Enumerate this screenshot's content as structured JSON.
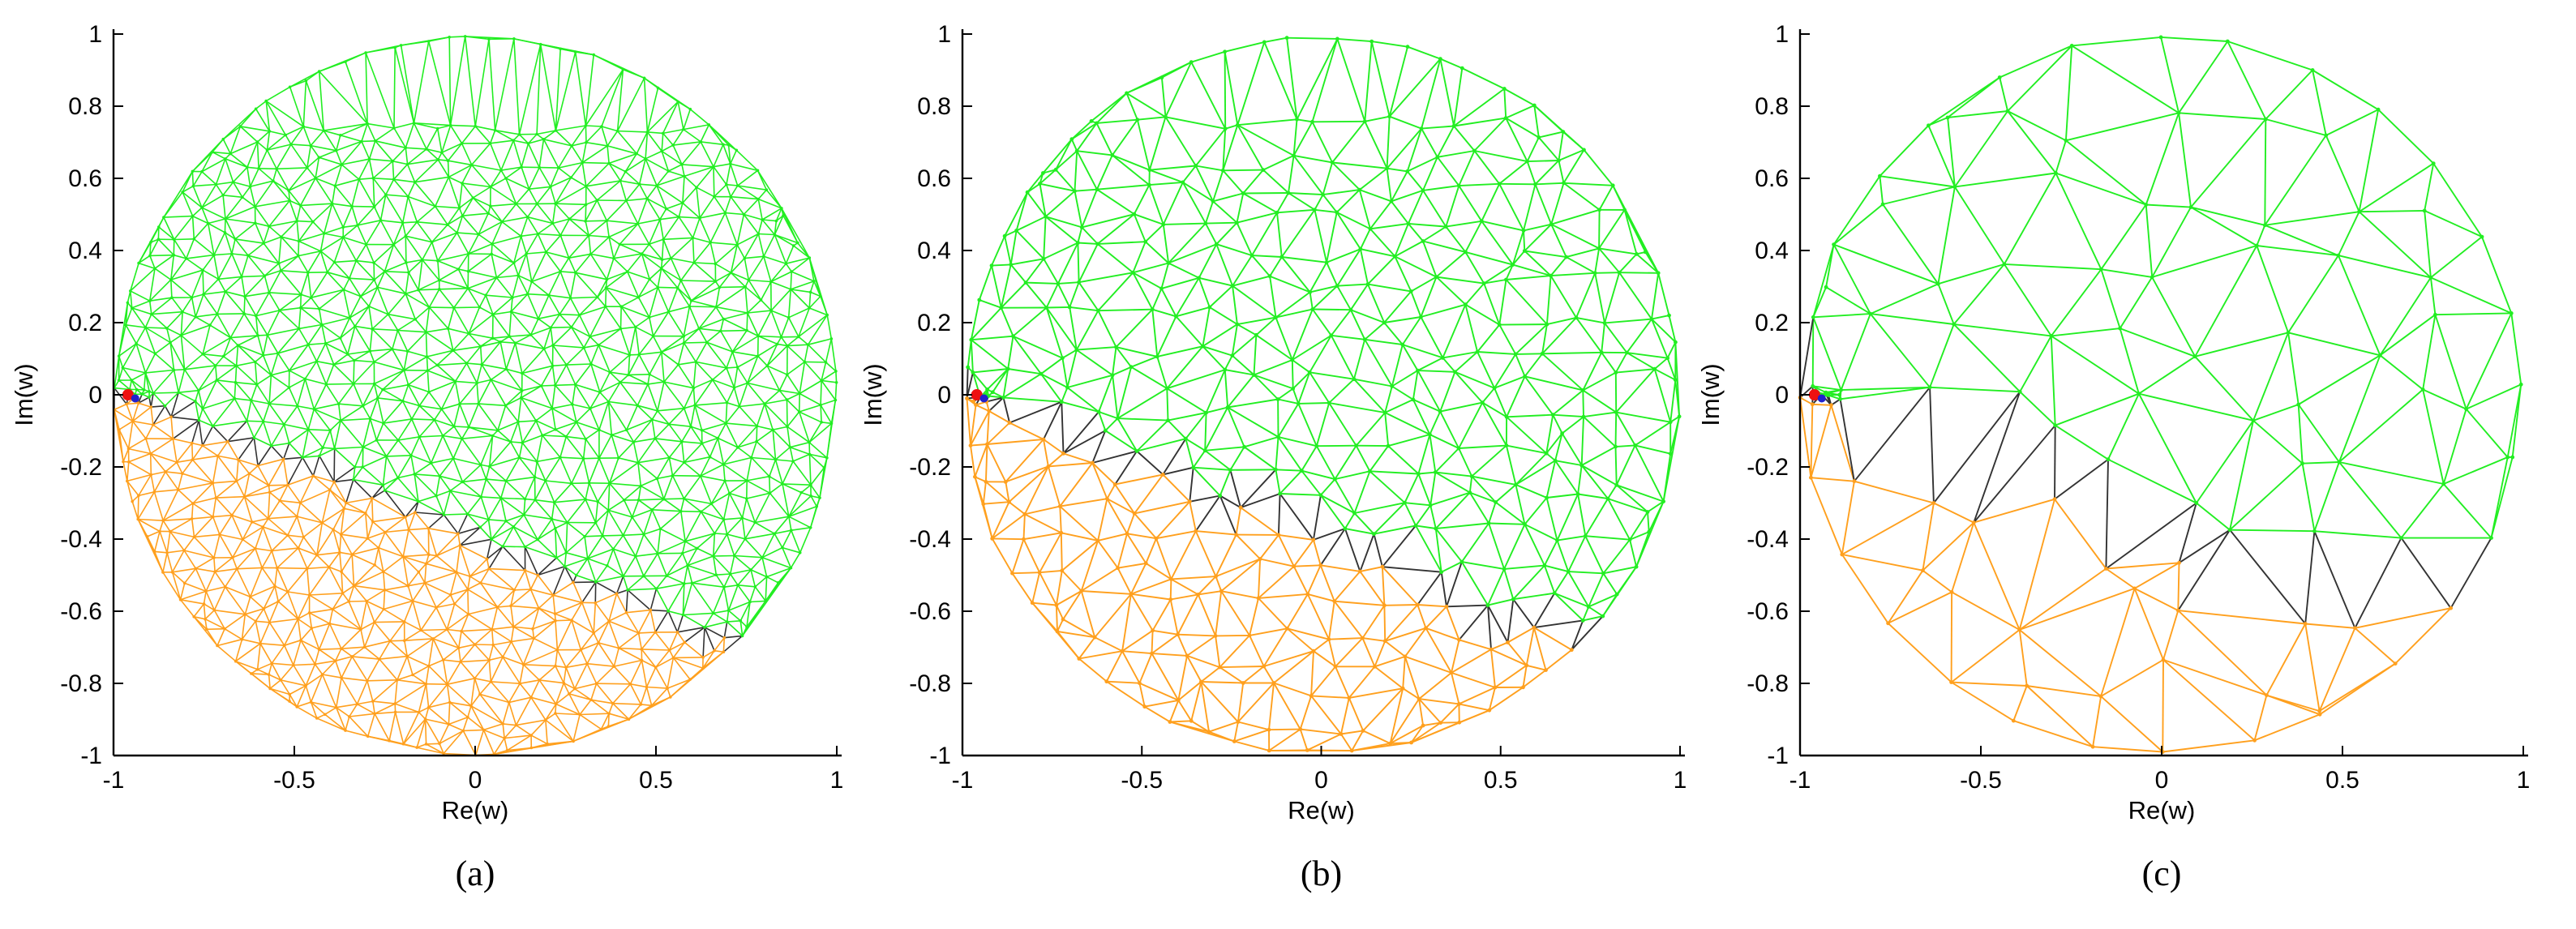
{
  "figure": {
    "colors": {
      "upper_region": "#22ee22",
      "lower_region": "#ffa01e",
      "interface": "#333333",
      "source_red": "#ee1111",
      "source_blue": "#2222cc"
    }
  },
  "chart_data": [
    {
      "type": "scatter",
      "description_kind": "triangulated mesh on unit disk",
      "panel_label": "(a)",
      "xlabel": "Re(w)",
      "ylabel": "Im(w)",
      "xlim": [
        -1,
        1
      ],
      "ylim": [
        -1,
        1
      ],
      "xticks": [
        "-1",
        "-0.5",
        "0",
        "0.5",
        "1"
      ],
      "yticks": [
        "1",
        "0.8",
        "0.6",
        "0.4",
        "0.2",
        "0",
        "-0.2",
        "-0.4",
        "-0.6",
        "-0.8",
        "-1"
      ],
      "xtick_values": [
        -1,
        -0.5,
        0,
        0.5,
        1
      ],
      "ytick_values": [
        1,
        0.8,
        0.6,
        0.4,
        0.2,
        0,
        -0.2,
        -0.4,
        -0.6,
        -0.8,
        -1
      ],
      "grid": false,
      "mesh_density": 34,
      "interface_line": {
        "from": [
          -0.97,
          0.0
        ],
        "to": [
          0.72,
          -0.68
        ]
      },
      "series": [
        {
          "region": "upper",
          "color": "#22ee22"
        },
        {
          "region": "lower",
          "color": "#ffa01e"
        },
        {
          "region": "interface",
          "color": "#333333"
        }
      ]
    },
    {
      "type": "scatter",
      "description_kind": "triangulated mesh on unit disk",
      "panel_label": "(b)",
      "xlabel": "Re(w)",
      "ylabel": "Im(w)",
      "xlim": [
        -1,
        1
      ],
      "ylim": [
        -1,
        1
      ],
      "xticks": [
        "-1",
        "-0.5",
        "0",
        "0.5",
        "1"
      ],
      "yticks": [
        "1",
        "0.8",
        "0.6",
        "0.4",
        "0.2",
        "0",
        "-0.2",
        "-0.4",
        "-0.6",
        "-0.8",
        "-1"
      ],
      "xtick_values": [
        -1,
        -0.5,
        0,
        0.5,
        1
      ],
      "ytick_values": [
        1,
        0.8,
        0.6,
        0.4,
        0.2,
        0,
        -0.2,
        -0.4,
        -0.6,
        -0.8,
        -1
      ],
      "grid": false,
      "mesh_density": 20,
      "interface_line": {
        "from": [
          -0.97,
          0.0
        ],
        "to": [
          0.68,
          -0.68
        ]
      },
      "series": [
        {
          "region": "upper",
          "color": "#22ee22"
        },
        {
          "region": "lower",
          "color": "#ffa01e"
        },
        {
          "region": "interface",
          "color": "#333333"
        }
      ]
    },
    {
      "type": "scatter",
      "description_kind": "triangulated mesh on unit disk",
      "panel_label": "(c)",
      "xlabel": "Re(w)",
      "ylabel": "Im(w)",
      "xlim": [
        -1,
        1
      ],
      "ylim": [
        -1,
        1
      ],
      "xticks": [
        "-1",
        "-0.5",
        "0",
        "0.5",
        "1"
      ],
      "yticks": [
        "1",
        "0.8",
        "0.6",
        "0.4",
        "0.2",
        "0",
        "-0.2",
        "-0.4",
        "-0.6",
        "-0.8",
        "-1"
      ],
      "xtick_values": [
        -1,
        -0.5,
        0,
        0.5,
        1
      ],
      "ytick_values": [
        1,
        0.8,
        0.6,
        0.4,
        0.2,
        0,
        -0.2,
        -0.4,
        -0.6,
        -0.8,
        -1
      ],
      "grid": false,
      "mesh_density": 9,
      "interface_line": {
        "from": [
          -0.97,
          0.0
        ],
        "to": [
          0.78,
          -0.58
        ]
      },
      "series": [
        {
          "region": "upper",
          "color": "#22ee22"
        },
        {
          "region": "lower",
          "color": "#ffa01e"
        },
        {
          "region": "interface",
          "color": "#333333"
        }
      ]
    }
  ]
}
